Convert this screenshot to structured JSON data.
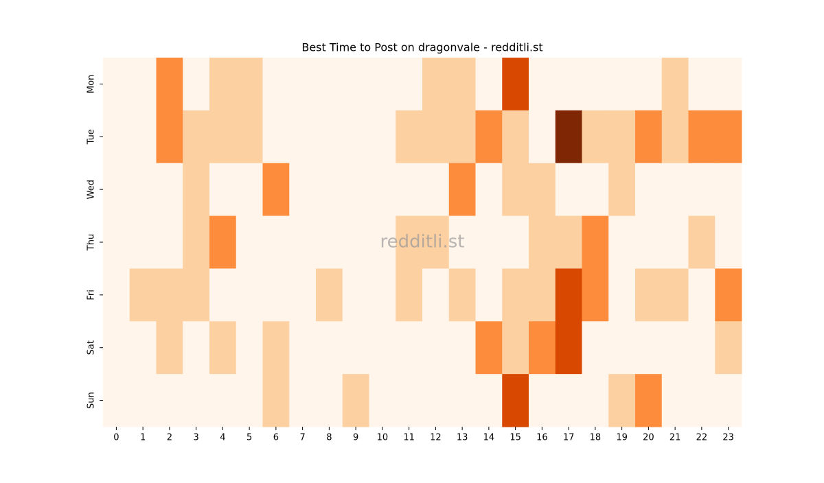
{
  "chart_data": {
    "type": "heatmap",
    "title": "Best Time to Post on dragonvale - redditli.st",
    "watermark": "redditli.st",
    "x": [
      0,
      1,
      2,
      3,
      4,
      5,
      6,
      7,
      8,
      9,
      10,
      11,
      12,
      13,
      14,
      15,
      16,
      17,
      18,
      19,
      20,
      21,
      22,
      23
    ],
    "categories": [
      "Mon",
      "Tue",
      "Wed",
      "Thu",
      "Fri",
      "Sat",
      "Sun"
    ],
    "colors": [
      "#fff5eb",
      "#fdd0a2",
      "#fd8d3c",
      "#d94801",
      "#7f2704"
    ],
    "values": [
      [
        0,
        0,
        2,
        0,
        1,
        1,
        0,
        0,
        0,
        0,
        0,
        0,
        1,
        1,
        0,
        3,
        0,
        0,
        0,
        0,
        0,
        1,
        0,
        0
      ],
      [
        0,
        0,
        2,
        1,
        1,
        1,
        0,
        0,
        0,
        0,
        0,
        1,
        1,
        1,
        2,
        1,
        0,
        4,
        1,
        1,
        2,
        1,
        2,
        2
      ],
      [
        0,
        0,
        0,
        1,
        0,
        0,
        2,
        0,
        0,
        0,
        0,
        0,
        0,
        2,
        0,
        1,
        1,
        0,
        0,
        1,
        0,
        0,
        0,
        0
      ],
      [
        0,
        0,
        0,
        1,
        2,
        0,
        0,
        0,
        0,
        0,
        0,
        1,
        1,
        0,
        0,
        0,
        1,
        1,
        2,
        0,
        0,
        0,
        1,
        0
      ],
      [
        0,
        1,
        1,
        1,
        0,
        0,
        0,
        0,
        1,
        0,
        0,
        1,
        0,
        1,
        0,
        1,
        1,
        3,
        2,
        0,
        1,
        1,
        0,
        2
      ],
      [
        0,
        0,
        1,
        0,
        1,
        0,
        1,
        0,
        0,
        0,
        0,
        0,
        0,
        0,
        2,
        1,
        2,
        3,
        0,
        0,
        0,
        0,
        0,
        1
      ],
      [
        0,
        0,
        0,
        0,
        0,
        0,
        1,
        0,
        0,
        1,
        0,
        0,
        0,
        0,
        0,
        3,
        0,
        0,
        0,
        1,
        2,
        0,
        0,
        0
      ]
    ]
  }
}
